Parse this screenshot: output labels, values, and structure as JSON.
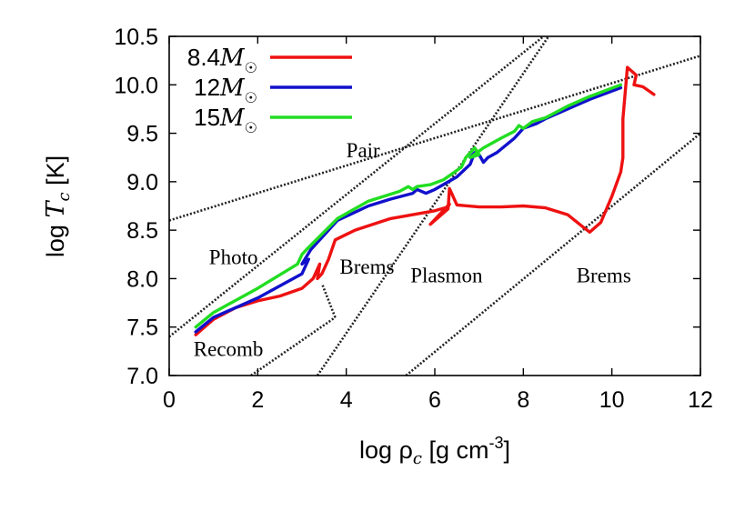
{
  "chart_data": {
    "type": "line",
    "xlabel": "log ρ",
    "xlabel_sub": "c",
    "xlabel_unit": " [g cm",
    "xlabel_sup": "-3",
    "xlabel_close": "]",
    "ylabel": "log ",
    "ylabel_var": "T",
    "ylabel_sub": "c",
    "ylabel_unit": " [K]",
    "xlim": [
      0,
      12
    ],
    "ylim": [
      7.0,
      10.5
    ],
    "xticks": [
      0,
      2,
      4,
      6,
      8,
      10,
      12
    ],
    "yticks": [
      7.0,
      7.5,
      8.0,
      8.5,
      9.0,
      9.5,
      10.0,
      10.5
    ],
    "xtick_labels": [
      "0",
      "2",
      "4",
      "6",
      "8",
      "10",
      "12"
    ],
    "ytick_labels": [
      "7.0",
      "7.5",
      "8.0",
      "8.5",
      "9.0",
      "9.5",
      "10.0",
      "10.5"
    ],
    "grid": false,
    "legend_position": "top-left",
    "series": [
      {
        "name": "8.4M☉",
        "legend_number": "8.4",
        "color": "#ee1111",
        "x": [
          0.6,
          0.8,
          1.0,
          1.5,
          2.0,
          2.5,
          3.0,
          3.25,
          3.4,
          3.35,
          3.45,
          3.6,
          3.75,
          4.2,
          5.0,
          6.0,
          6.3,
          6.33,
          5.9,
          6.15,
          6.3,
          6.33,
          6.38,
          6.5,
          7.0,
          7.5,
          8.0,
          8.5,
          9.0,
          9.3,
          9.5,
          9.75,
          10.0,
          10.2,
          10.25,
          10.25,
          10.35,
          10.55,
          10.5,
          10.7,
          10.95
        ],
        "y": [
          7.42,
          7.5,
          7.58,
          7.7,
          7.77,
          7.82,
          7.9,
          8.0,
          8.15,
          8.0,
          8.05,
          8.2,
          8.4,
          8.5,
          8.62,
          8.7,
          8.74,
          8.77,
          8.56,
          8.66,
          8.72,
          8.93,
          8.88,
          8.76,
          8.74,
          8.74,
          8.75,
          8.73,
          8.66,
          8.55,
          8.48,
          8.58,
          8.85,
          9.1,
          9.25,
          9.65,
          10.18,
          10.1,
          10.0,
          9.98,
          9.9
        ]
      },
      {
        "name": "12M☉",
        "legend_number": "12",
        "color": "#1111cc",
        "x": [
          0.6,
          1.0,
          2.0,
          3.0,
          3.15,
          3.0,
          3.2,
          3.8,
          4.5,
          5.0,
          5.5,
          5.6,
          5.8,
          6.0,
          6.5,
          6.8,
          6.9,
          6.8,
          7.0,
          7.1,
          7.2,
          7.4,
          7.8,
          8.0,
          8.3,
          8.5,
          9.0,
          9.5,
          10.2
        ],
        "y": [
          7.45,
          7.6,
          7.8,
          8.05,
          8.2,
          8.15,
          8.3,
          8.6,
          8.75,
          8.82,
          8.88,
          8.92,
          8.88,
          8.92,
          9.05,
          9.18,
          9.3,
          9.25,
          9.28,
          9.2,
          9.25,
          9.3,
          9.45,
          9.55,
          9.6,
          9.65,
          9.75,
          9.85,
          9.97
        ]
      },
      {
        "name": "15M☉",
        "legend_number": "15",
        "color": "#22dd22",
        "x": [
          0.6,
          1.0,
          2.0,
          2.9,
          3.0,
          3.1,
          3.8,
          4.5,
          5.2,
          5.4,
          5.5,
          5.6,
          5.9,
          6.2,
          6.6,
          6.7,
          6.9,
          7.0,
          6.8,
          7.1,
          7.5,
          7.8,
          7.9,
          8.0,
          8.2,
          8.5,
          9.0,
          9.5,
          10.2
        ],
        "y": [
          7.5,
          7.65,
          7.9,
          8.15,
          8.25,
          8.3,
          8.62,
          8.8,
          8.9,
          8.95,
          8.92,
          8.95,
          8.97,
          9.02,
          9.15,
          9.25,
          9.35,
          9.28,
          9.25,
          9.35,
          9.45,
          9.52,
          9.58,
          9.55,
          9.62,
          9.66,
          9.78,
          9.88,
          10.0
        ]
      }
    ],
    "boundaries": [
      {
        "x": [
          0,
          12
        ],
        "y": [
          8.6,
          10.3
        ]
      },
      {
        "x": [
          0,
          12
        ],
        "y": [
          7.4,
          11.8
        ]
      },
      {
        "x": [
          3.35,
          12
        ],
        "y": [
          7.0,
          12.8
        ]
      },
      {
        "x": [
          5.35,
          12
        ],
        "y": [
          7.0,
          9.5
        ]
      },
      {
        "x": [
          1.85,
          3.75
        ],
        "y": [
          7.0,
          7.6
        ]
      },
      {
        "x": [
          3.75,
          3.45
        ],
        "y": [
          7.6,
          7.95
        ]
      }
    ],
    "region_labels": [
      {
        "text": "Pair",
        "x": 4.0,
        "y": 9.25
      },
      {
        "text": "Photo",
        "x": 0.9,
        "y": 8.15
      },
      {
        "text": "Brems",
        "x": 3.85,
        "y": 8.05
      },
      {
        "text": "Plasmon",
        "x": 5.45,
        "y": 7.96
      },
      {
        "text": "Brems",
        "x": 9.2,
        "y": 7.96
      },
      {
        "text": "Recomb",
        "x": 0.55,
        "y": 7.2
      }
    ]
  }
}
